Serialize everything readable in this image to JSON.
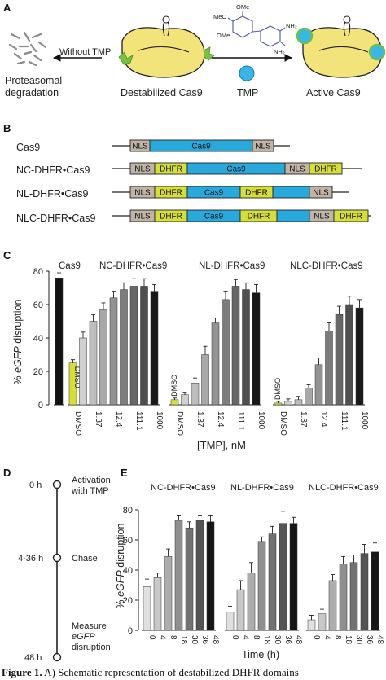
{
  "panels": {
    "a": "A",
    "b": "B",
    "c": "C",
    "d": "D",
    "e": "E"
  },
  "panel_a": {
    "without_tmp": "Without TMP",
    "proteasomal": "Proteasomal",
    "degradation": "degradation",
    "destabilized": "Destabilized Cas9",
    "tmp": "TMP",
    "active": "Active Cas9",
    "molecule_labels": [
      "OMe",
      "MeO",
      "OMe",
      "NH₂",
      "NH₂"
    ]
  },
  "panel_b": {
    "constructs": [
      {
        "label": "Cas9",
        "domains": [
          "NLS",
          "Cas9",
          "NLS"
        ]
      },
      {
        "label": "NC-DHFR•Cas9",
        "domains": [
          "NLS",
          "DHFR",
          "Cas9",
          "NLS",
          "DHFR"
        ]
      },
      {
        "label": "NL-DHFR•Cas9",
        "domains": [
          "NLS",
          "DHFR",
          "Cas9",
          "DHFR",
          "NLS"
        ]
      },
      {
        "label": "NLC-DHFR•Cas9",
        "domains": [
          "NLS",
          "DHFR",
          "Cas9",
          "DHFR",
          "NLS",
          "DHFR"
        ]
      }
    ],
    "colors": {
      "nls": "#bfb4a6",
      "dhfr": "#d6df3a",
      "cas9": "#29a8dc"
    }
  },
  "panel_c": {
    "ylabel_pre": "% ",
    "ylabel_em": "eGFP",
    "ylabel_post": " disruption",
    "xlabel": "[TMP], nM",
    "group_titles": [
      "Cas9",
      "NC-DHFR•Cas9",
      "NL-DHFR•Cas9",
      "NLC-DHFR•Cas9"
    ],
    "dmso": "DMSO",
    "tick_labels": [
      "1.37",
      "12.4",
      "111.1",
      "1000"
    ]
  },
  "panel_d": {
    "times": [
      "0 h",
      "4-36 h",
      "48 h"
    ],
    "events": [
      "Activation",
      "with TMP",
      "Chase",
      "Measure",
      "eGFP",
      "disruption"
    ]
  },
  "panel_e": {
    "ylabel_pre": "% ",
    "ylabel_em": "eGFP",
    "ylabel_post": " disruption",
    "xlabel": "Time (h)",
    "group_titles": [
      "NC-DHFR•Cas9",
      "NL-DHFR•Cas9",
      "NLC-DHFR•Cas9"
    ],
    "tick_labels": [
      "0",
      "4",
      "8",
      "18",
      "30",
      "36",
      "48"
    ]
  },
  "caption": {
    "bold": "Figure 1.",
    "text": " A) Schematic representation of destabilized DHFR domains"
  },
  "chart_data": [
    {
      "type": "bar",
      "panel": "C",
      "ylabel": "% eGFP disruption",
      "xlabel": "[TMP], nM",
      "ylim": [
        0,
        80
      ],
      "yticks": [
        0,
        20,
        40,
        60,
        80
      ],
      "grid": false,
      "groups": [
        {
          "name": "Cas9",
          "x": [
            ""
          ],
          "values": [
            76
          ],
          "errors": [
            3
          ]
        },
        {
          "name": "NC-DHFR•Cas9",
          "x": [
            "DMSO",
            "",
            "1.37",
            "",
            "12.4",
            "",
            "111.1",
            "",
            "1000"
          ],
          "values": [
            25,
            40,
            50,
            57,
            64,
            69,
            71,
            71,
            68
          ],
          "errors": [
            2,
            3.5,
            4,
            4,
            4,
            4,
            4.5,
            4.5,
            4
          ]
        },
        {
          "name": "NL-DHFR•Cas9",
          "x": [
            "DMSO",
            "",
            "1.37",
            "",
            "12.4",
            "",
            "111.1",
            "",
            "1000"
          ],
          "values": [
            3,
            6,
            13,
            30,
            49,
            63,
            71,
            69,
            67
          ],
          "errors": [
            1,
            1.5,
            3,
            5,
            3,
            5,
            4,
            4,
            5
          ]
        },
        {
          "name": "NLC-DHFR•Cas9",
          "x": [
            "DMSO",
            "",
            "1.37",
            "",
            "12.4",
            "",
            "111.1",
            "",
            "1000"
          ],
          "values": [
            1,
            2,
            3,
            10,
            24,
            44,
            54,
            60,
            58
          ],
          "errors": [
            1,
            1.5,
            2,
            2,
            4,
            5,
            5,
            5,
            5
          ]
        }
      ]
    },
    {
      "type": "bar",
      "panel": "E",
      "ylabel": "% eGFP disruption",
      "xlabel": "Time (h)",
      "ylim": [
        0,
        80
      ],
      "yticks": [
        0,
        20,
        40,
        60,
        80
      ],
      "grid": false,
      "categories": [
        "0",
        "4",
        "8",
        "18",
        "30",
        "36",
        "48"
      ],
      "series": [
        {
          "name": "NC-DHFR•Cas9",
          "values": [
            29,
            35,
            49,
            73,
            68,
            73,
            72
          ],
          "errors": [
            5,
            3,
            5,
            3,
            4,
            3,
            4
          ]
        },
        {
          "name": "NL-DHFR•Cas9",
          "values": [
            12,
            27,
            38,
            59,
            64,
            71,
            71
          ],
          "errors": [
            4,
            6,
            7,
            3,
            5,
            8,
            4
          ]
        },
        {
          "name": "NLC-DHFR•Cas9",
          "values": [
            7,
            11,
            33,
            44,
            45,
            51,
            52
          ],
          "errors": [
            3,
            3,
            4,
            5,
            5,
            6,
            6
          ]
        }
      ]
    }
  ]
}
